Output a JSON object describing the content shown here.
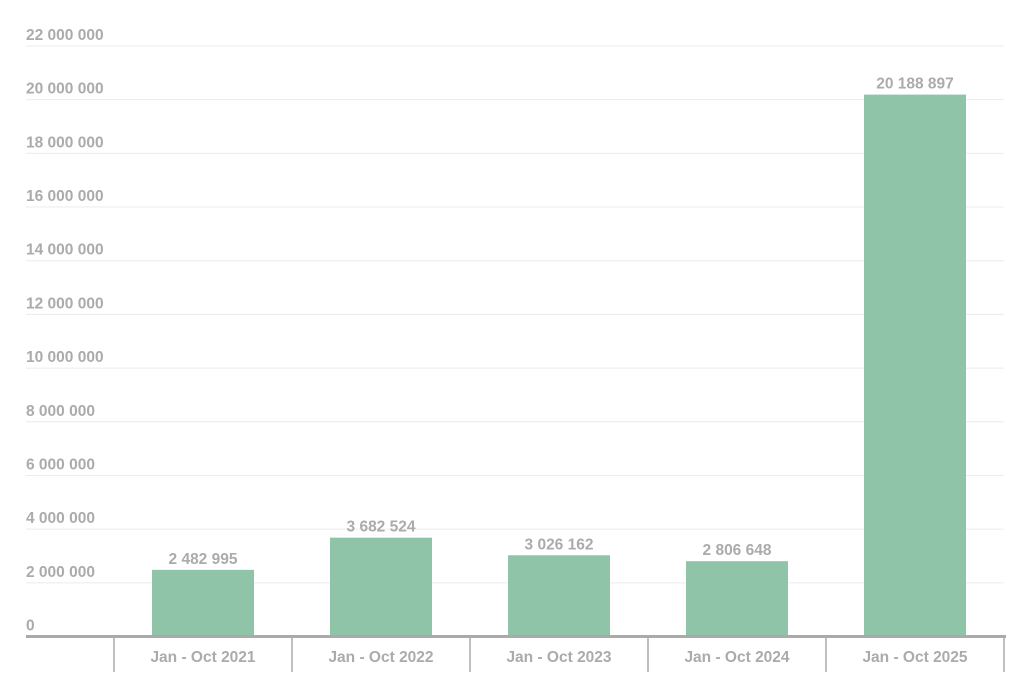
{
  "chart_data": {
    "type": "bar",
    "title": "",
    "xlabel": "",
    "ylabel": "",
    "categories": [
      "Jan - Oct 2021",
      "Jan - Oct 2022",
      "Jan - Oct 2023",
      "Jan - Oct 2024",
      "Jan - Oct 2025"
    ],
    "values": [
      2482995,
      3682524,
      3026162,
      2806648,
      20188897
    ],
    "value_labels": [
      "2 482 995",
      "3 682 524",
      "3 026 162",
      "2 806 648",
      "20 188 897"
    ],
    "ylim": [
      0,
      22000000
    ],
    "yticks": [
      0,
      2000000,
      4000000,
      6000000,
      8000000,
      10000000,
      12000000,
      14000000,
      16000000,
      18000000,
      20000000,
      22000000
    ],
    "ytick_labels": [
      "0",
      "2 000 000",
      "4 000 000",
      "6 000 000",
      "8 000 000",
      "10 000 000",
      "12 000 000",
      "14 000 000",
      "16 000 000",
      "18 000 000",
      "20 000 000",
      "22 000 000"
    ],
    "grid": true,
    "legend": "none",
    "colors": {
      "bar": "#8fc4a8",
      "text": "#ababab",
      "grid": "#ececec",
      "axis": "#aaaaaa"
    }
  }
}
